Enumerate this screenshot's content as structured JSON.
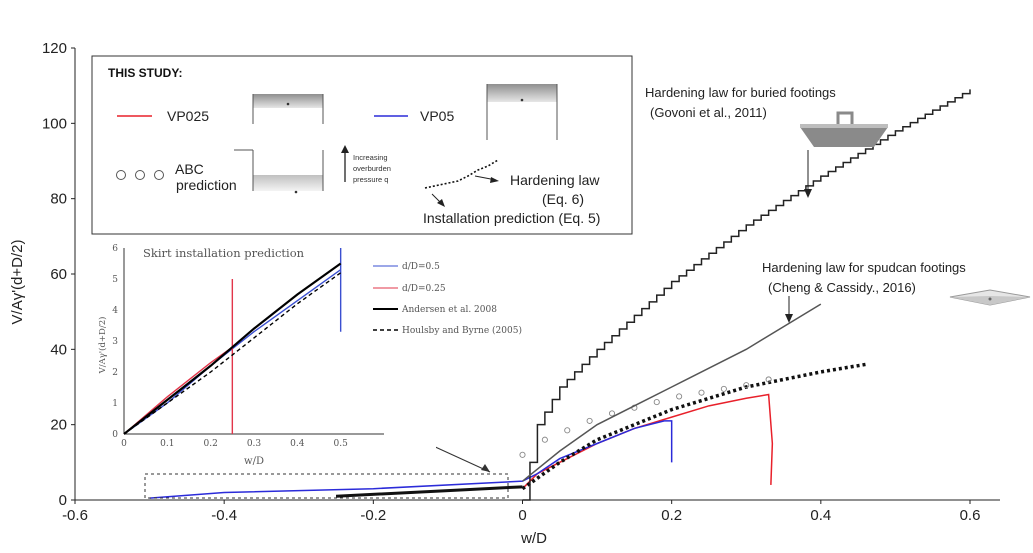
{
  "chart_data": {
    "type": "line",
    "xlabel": "w/D",
    "ylabel": "V/Aγ'(d+D/2)",
    "xlim": [
      -0.6,
      0.6
    ],
    "ylim": [
      0,
      120
    ],
    "xticks": [
      "-0.6",
      "-0.4",
      "-0.2",
      "0",
      "0.2",
      "0.4",
      "0.6"
    ],
    "yticks": [
      "0",
      "20",
      "40",
      "60",
      "80",
      "100",
      "120"
    ],
    "series": [
      {
        "name": "VP025",
        "color": "#e8202a",
        "x": [
          0.0,
          0.02,
          0.05,
          0.1,
          0.15,
          0.2,
          0.25,
          0.3,
          0.33,
          0.335,
          0.333
        ],
        "y": [
          3,
          7,
          10,
          15,
          19,
          22,
          25,
          27,
          28,
          15,
          4
        ]
      },
      {
        "name": "VP05",
        "color": "#2b2bd9",
        "x": [
          -0.5,
          -0.4,
          -0.2,
          0.0,
          0.02,
          0.05,
          0.1,
          0.15,
          0.19,
          0.2,
          0.2
        ],
        "y": [
          0.5,
          2,
          3,
          5,
          7,
          11,
          15,
          19,
          21,
          21,
          10
        ]
      },
      {
        "name": "Hardening law (Eq. 6)",
        "color": "#111111",
        "dash": true,
        "x": [
          0.0,
          0.05,
          0.1,
          0.2,
          0.3,
          0.4,
          0.46
        ],
        "y": [
          3,
          10,
          16,
          24,
          30,
          34,
          36
        ]
      },
      {
        "name": "ABC prediction",
        "color": "#888888",
        "markers": true,
        "x": [
          0.0,
          0.03,
          0.06,
          0.09,
          0.12,
          0.15,
          0.18,
          0.21,
          0.24,
          0.27,
          0.3,
          0.33
        ],
        "y": [
          12,
          16,
          18.5,
          21,
          23,
          24.5,
          26,
          27.5,
          28.5,
          29.5,
          30.5,
          32
        ]
      },
      {
        "name": "Installation prediction (Eq. 5)",
        "color": "#111111",
        "x": [
          -0.25,
          -0.1,
          0.0
        ],
        "y": [
          1,
          2.5,
          3.5
        ]
      },
      {
        "name": "Hardening law for buried footings (Govoni et al., 2011)",
        "color": "#222222",
        "staircase": true,
        "x": [
          0.0,
          0.02,
          0.05,
          0.1,
          0.2,
          0.3,
          0.4,
          0.5,
          0.6
        ],
        "y": [
          0,
          20,
          30,
          40,
          58,
          73,
          86,
          98,
          109
        ]
      },
      {
        "name": "Hardening law for spudcan footings (Cheng & Cassidy., 2016)",
        "color": "#555555",
        "x": [
          0.0,
          0.05,
          0.1,
          0.2,
          0.3,
          0.4
        ],
        "y": [
          5,
          13,
          20,
          30,
          40,
          52
        ]
      }
    ],
    "annotations": [
      "Hardening law for buried footings",
      "(Govoni et al., 2011)",
      "Hardening law for spudcan  footings",
      "(Cheng & Cassidy., 2016)"
    ]
  },
  "legend_box": {
    "title": "THIS STUDY:",
    "vp025": "VP025",
    "vp05": "VP05",
    "abc_line1": "ABC",
    "abc_line2": "prediction",
    "pressure_line1": "Increasing",
    "pressure_line2": "overburden",
    "pressure_line3": "pressure q",
    "hardening_line1": "Hardening law",
    "hardening_line2": "(Eq. 6)",
    "installation": "Installation prediction (Eq. 5)"
  },
  "inset": {
    "title": "Skirt installation prediction",
    "xlabel": "w/D",
    "ylabel": "V/Aγ'(d+D/2)",
    "xticks": [
      "0",
      "0.1",
      "0.2",
      "0.3",
      "0.4",
      "0.5"
    ],
    "yticks": [
      "0",
      "1",
      "2",
      "3",
      "4",
      "5",
      "6"
    ],
    "legend": [
      "d/D=0.5",
      "d/D=0.25",
      "Andersen et al. 2008",
      "Houlsby and Byrne (2005)"
    ],
    "series": [
      {
        "color": "#3a4fd0",
        "x": [
          0,
          0.1,
          0.2,
          0.3,
          0.4,
          0.5,
          0.5,
          0.5
        ],
        "y": [
          0,
          1.0,
          2.2,
          3.3,
          4.3,
          5.3,
          6.0,
          3.3
        ]
      },
      {
        "color": "#e2354a",
        "x": [
          0,
          0.1,
          0.2,
          0.25,
          0.25,
          0.25
        ],
        "y": [
          0,
          1.2,
          2.3,
          2.8,
          5.0,
          0.0
        ]
      },
      {
        "color": "#000000",
        "x": [
          0,
          0.1,
          0.2,
          0.3,
          0.4,
          0.5
        ],
        "y": [
          0,
          1.1,
          2.2,
          3.4,
          4.5,
          5.5
        ]
      },
      {
        "color": "#000000",
        "dash": true,
        "x": [
          0,
          0.1,
          0.2,
          0.3,
          0.4,
          0.5
        ],
        "y": [
          0,
          1.0,
          2.0,
          3.1,
          4.2,
          5.2
        ]
      }
    ]
  }
}
